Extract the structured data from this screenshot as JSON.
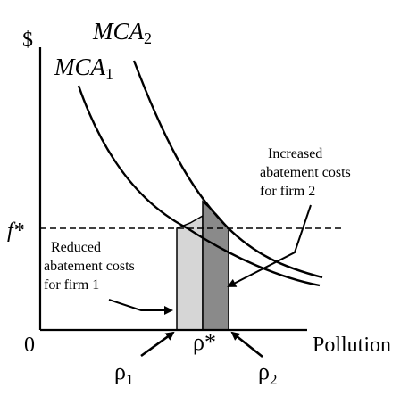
{
  "axes": {
    "y_label": "$",
    "x_label": "Pollution",
    "origin_label": "0"
  },
  "curves": {
    "mca1": {
      "label": "MCA",
      "subscript": "1"
    },
    "mca2": {
      "label": "MCA",
      "subscript": "2"
    }
  },
  "fee": {
    "label": "f*"
  },
  "points": {
    "rho_star": {
      "label": "ρ*"
    },
    "rho1": {
      "label": "ρ",
      "subscript": "1"
    },
    "rho2": {
      "label": "ρ",
      "subscript": "2"
    }
  },
  "annotations": {
    "reduced": [
      "Reduced",
      "abatement costs",
      "for  firm 1"
    ],
    "increased": [
      "Increased",
      "abatement costs",
      "for  firm 2"
    ]
  },
  "colors": {
    "reduced_fill": "#d6d6d6",
    "increased_fill": "#8a8a8a",
    "line": "#000000"
  }
}
